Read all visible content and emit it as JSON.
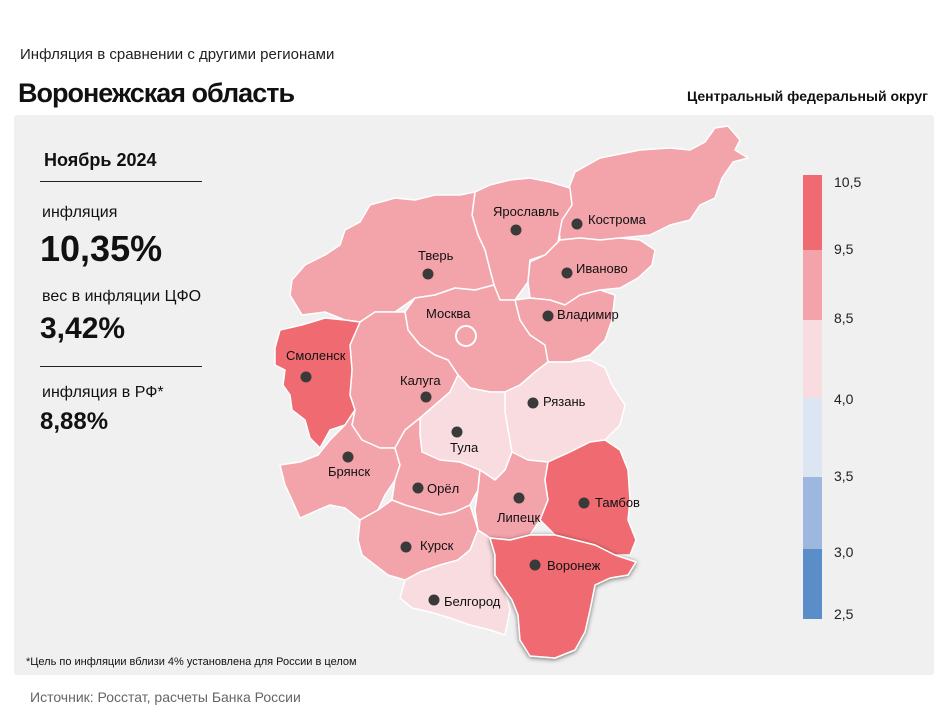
{
  "header": {
    "subtitle": "Инфляция  в сравнении  с другими  регионами",
    "title": "Воронежская область",
    "district": "Центральный федеральный округ"
  },
  "stats": {
    "period": "Ноябрь 2024",
    "inflation_label": "инфляция",
    "inflation_value": "10,35%",
    "weight_label": "вес в инфляции  ЦФО",
    "weight_value": "3,42%",
    "rf_label": "инфляция  в РФ*",
    "rf_value": "8,88%"
  },
  "legend": {
    "bins": [
      {
        "from": "2,5",
        "to": "3,0",
        "color": "#5b8dc8"
      },
      {
        "from": "3,0",
        "to": "3,5",
        "color": "#9db7de"
      },
      {
        "from": "3,5",
        "to": "4,0",
        "color": "#dce6f3"
      },
      {
        "from": "4,0",
        "to": "8,5",
        "color": "#f8dcdf"
      },
      {
        "from": "8,5",
        "to": "9,5",
        "color": "#f3a3aa"
      },
      {
        "from": "9,5",
        "to": "10,5",
        "color": "#ef6b71"
      }
    ],
    "tick_labels": [
      "10,5",
      "9,5",
      "8,5",
      "4,0",
      "3,5",
      "3,0",
      "2,5"
    ]
  },
  "regions": {
    "yaroslavl": {
      "name": "Ярославль",
      "color": "#f3a3aa"
    },
    "kostroma": {
      "name": "Кострома",
      "color": "#f3a3aa"
    },
    "tver": {
      "name": "Тверь",
      "color": "#f3a3aa"
    },
    "ivanovo": {
      "name": "Иваново",
      "color": "#f3a3aa"
    },
    "moskva": {
      "name": "Москва",
      "color": "#f3a3aa"
    },
    "vladimir": {
      "name": "Владимир",
      "color": "#f3a3aa"
    },
    "smolensk": {
      "name": "Смоленск",
      "color": "#ef6b71"
    },
    "kaluga": {
      "name": "Калуга",
      "color": "#f3a3aa"
    },
    "ryazan": {
      "name": "Рязань",
      "color": "#f8dcdf"
    },
    "tula": {
      "name": "Тула",
      "color": "#f8dcdf"
    },
    "bryansk": {
      "name": "Брянск",
      "color": "#f3a3aa"
    },
    "orel": {
      "name": "Орёл",
      "color": "#f3a3aa"
    },
    "tambov": {
      "name": "Тамбов",
      "color": "#ef6b71"
    },
    "lipetsk": {
      "name": "Липецк",
      "color": "#f3a3aa"
    },
    "kursk": {
      "name": "Курск",
      "color": "#f3a3aa"
    },
    "voronezh": {
      "name": "Воронеж",
      "color": "#ef6b71"
    },
    "belgorod": {
      "name": "Белгород",
      "color": "#f8dcdf"
    }
  },
  "footnote": "*Цель по инфляции вблизи 4% установлена для России в целом",
  "source": "Источник: Росстат, расчеты Банка России"
}
